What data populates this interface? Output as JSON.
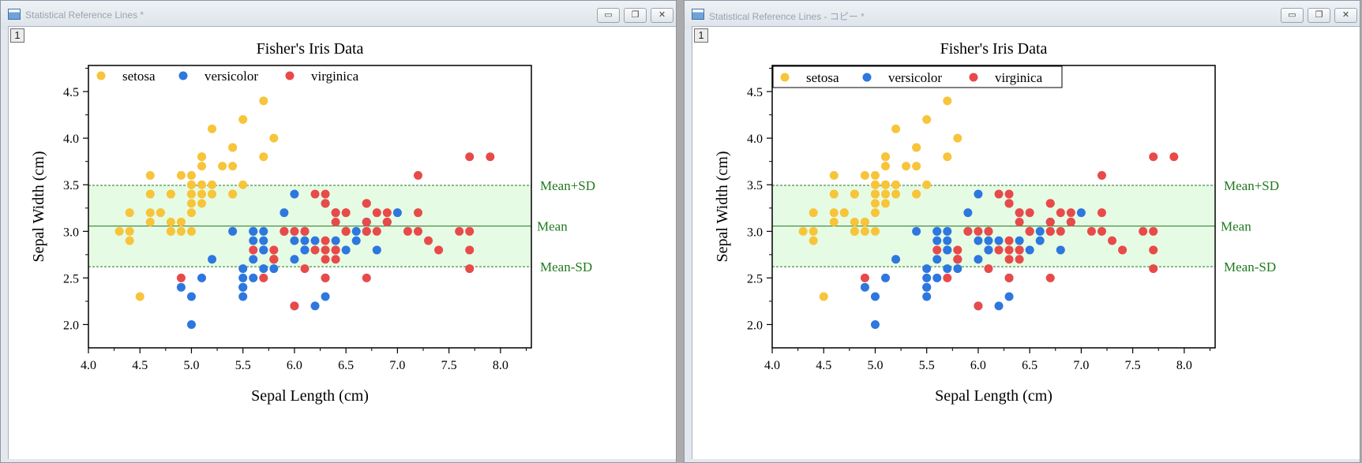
{
  "windows": [
    {
      "title": "Statistical Reference Lines *",
      "layer_tab": "1",
      "legend_box": false,
      "buttons": {
        "minimize": "▭",
        "restore": "❐",
        "close": "✕"
      }
    },
    {
      "title": "Statistical Reference Lines - コピー *",
      "layer_tab": "1",
      "legend_box": true,
      "buttons": {
        "minimize": "▭",
        "restore": "❐",
        "close": "✕"
      }
    }
  ],
  "chart_data": {
    "type": "scatter",
    "title": "Fisher's Iris Data",
    "xlabel": "Sepal Length (cm)",
    "ylabel": "Sepal Width (cm)",
    "xlim": [
      4.0,
      8.3
    ],
    "ylim": [
      1.75,
      4.78
    ],
    "xticks": [
      "4.0",
      "4.5",
      "5.0",
      "5.5",
      "6.0",
      "6.5",
      "7.0",
      "7.5",
      "8.0"
    ],
    "yticks": [
      "2.0",
      "2.5",
      "3.0",
      "3.5",
      "4.0",
      "4.5"
    ],
    "legend_position": "top-left",
    "reference_lines": {
      "mean": 3.057,
      "mean_plus_sd": 3.493,
      "mean_minus_sd": 2.621,
      "labels": {
        "plus": "Mean+SD",
        "mean": "Mean",
        "minus": "Mean-SD"
      },
      "band_color": "#e6fbe4",
      "line_color": "#1f7a1f"
    },
    "series": [
      {
        "name": "setosa",
        "color": "#f7c43a",
        "x": [
          5.1,
          4.9,
          4.7,
          4.6,
          5.0,
          5.4,
          4.6,
          5.0,
          4.4,
          4.9,
          5.4,
          4.8,
          4.8,
          4.3,
          5.8,
          5.7,
          5.4,
          5.1,
          5.7,
          5.1,
          5.4,
          5.1,
          4.6,
          5.1,
          4.8,
          5.0,
          5.0,
          5.2,
          5.2,
          4.7,
          4.8,
          5.4,
          5.2,
          5.5,
          4.9,
          5.0,
          5.5,
          4.9,
          4.4,
          5.1,
          5.0,
          4.5,
          4.4,
          5.0,
          5.1,
          4.8,
          5.1,
          4.6,
          5.3,
          5.0
        ],
        "y": [
          3.5,
          3.0,
          3.2,
          3.1,
          3.6,
          3.9,
          3.4,
          3.4,
          2.9,
          3.1,
          3.7,
          3.4,
          3.0,
          3.0,
          4.0,
          4.4,
          3.9,
          3.5,
          3.8,
          3.8,
          3.4,
          3.7,
          3.6,
          3.3,
          3.4,
          3.0,
          3.4,
          3.5,
          3.4,
          3.2,
          3.1,
          3.4,
          4.1,
          4.2,
          3.1,
          3.2,
          3.5,
          3.6,
          3.0,
          3.4,
          3.5,
          2.3,
          3.2,
          3.5,
          3.8,
          3.0,
          3.8,
          3.2,
          3.7,
          3.3
        ]
      },
      {
        "name": "versicolor",
        "color": "#2d77de",
        "x": [
          7.0,
          6.4,
          6.9,
          5.5,
          6.5,
          5.7,
          6.3,
          4.9,
          6.6,
          5.2,
          5.0,
          5.9,
          6.0,
          6.1,
          5.6,
          6.7,
          5.6,
          5.8,
          6.2,
          5.6,
          5.9,
          6.1,
          6.3,
          6.1,
          6.4,
          6.6,
          6.8,
          6.7,
          6.0,
          5.7,
          5.5,
          5.5,
          5.8,
          6.0,
          5.4,
          6.0,
          6.7,
          6.3,
          5.6,
          5.5,
          5.5,
          6.1,
          5.8,
          5.0,
          5.6,
          5.7,
          5.7,
          6.2,
          5.1,
          5.7
        ],
        "y": [
          3.2,
          3.2,
          3.1,
          2.3,
          2.8,
          2.8,
          3.3,
          2.4,
          2.9,
          2.7,
          2.0,
          3.0,
          2.2,
          2.9,
          2.9,
          3.1,
          3.0,
          2.7,
          2.2,
          2.5,
          3.2,
          2.8,
          2.5,
          2.8,
          2.9,
          3.0,
          2.8,
          3.0,
          2.9,
          2.6,
          2.4,
          2.4,
          2.7,
          2.7,
          3.0,
          3.4,
          3.1,
          2.3,
          3.0,
          2.5,
          2.6,
          3.0,
          2.6,
          2.3,
          2.7,
          3.0,
          2.9,
          2.9,
          2.5,
          2.8
        ]
      },
      {
        "name": "virginica",
        "color": "#e84a4a",
        "x": [
          6.3,
          5.8,
          7.1,
          6.3,
          6.5,
          7.6,
          4.9,
          7.3,
          6.7,
          7.2,
          6.5,
          6.4,
          6.8,
          5.7,
          5.8,
          6.4,
          6.5,
          7.7,
          7.7,
          6.0,
          6.9,
          5.6,
          7.7,
          6.3,
          6.7,
          7.2,
          6.2,
          6.1,
          6.4,
          7.2,
          7.4,
          7.9,
          6.4,
          6.3,
          6.1,
          7.7,
          6.3,
          6.4,
          6.0,
          6.9,
          6.7,
          6.9,
          5.8,
          6.8,
          6.7,
          6.7,
          6.3,
          6.5,
          6.2,
          5.9
        ],
        "y": [
          3.3,
          2.7,
          3.0,
          2.9,
          3.0,
          3.0,
          2.5,
          2.9,
          2.5,
          3.6,
          3.2,
          2.7,
          3.0,
          2.5,
          2.8,
          3.2,
          3.0,
          3.8,
          2.6,
          2.2,
          3.2,
          2.8,
          2.8,
          2.7,
          3.3,
          3.2,
          2.8,
          3.0,
          2.8,
          3.0,
          2.8,
          3.8,
          2.8,
          2.8,
          2.6,
          3.0,
          3.4,
          3.1,
          3.0,
          3.1,
          3.1,
          3.1,
          2.7,
          3.2,
          3.3,
          3.0,
          2.5,
          3.0,
          3.4,
          3.0
        ]
      }
    ]
  }
}
